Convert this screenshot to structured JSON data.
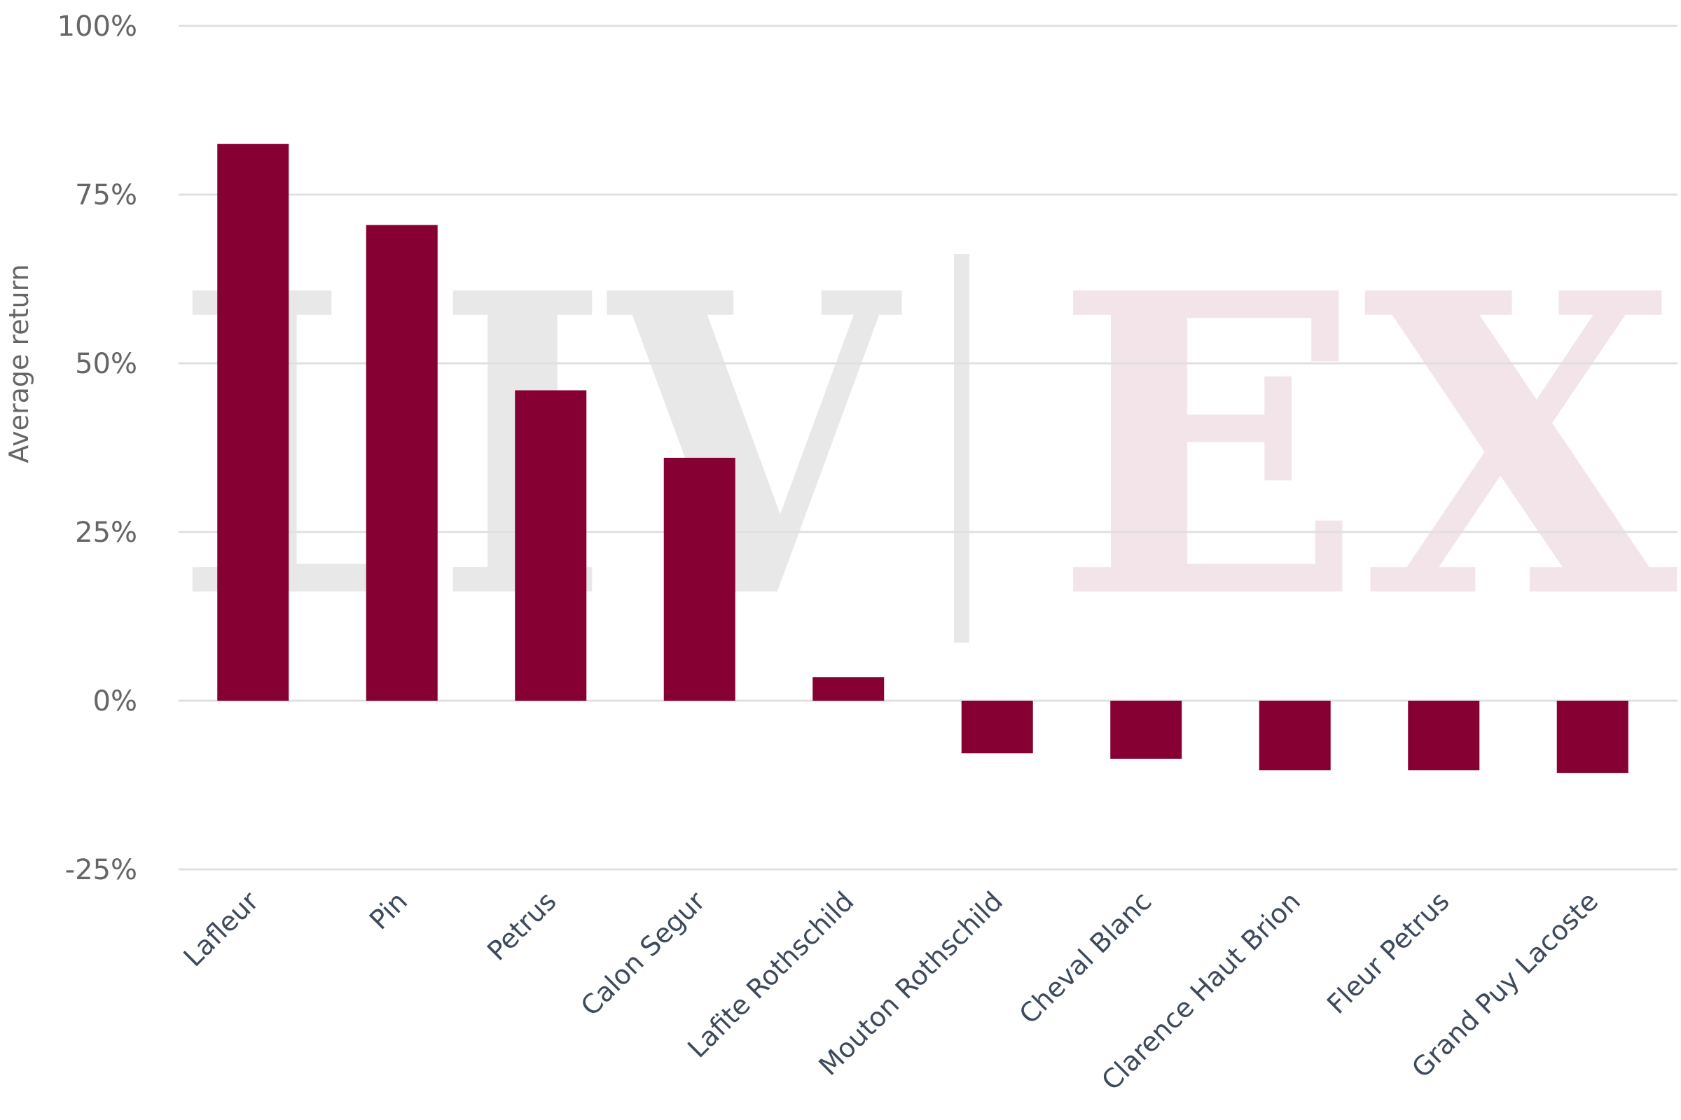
{
  "watermark": {
    "left_text": "LIV",
    "right_text": "EX"
  },
  "colors": {
    "bar": "#870033",
    "grid": "#e0e0e0",
    "watermark_left": "#e8e8e8",
    "watermark_right": "#f2e4e8"
  },
  "chart_data": {
    "type": "bar",
    "title": "",
    "xlabel": "",
    "ylabel": "Average return",
    "ylim": [
      -25,
      100
    ],
    "yticks": [
      -25,
      0,
      25,
      50,
      75,
      100
    ],
    "ytick_labels": [
      "-25%",
      "0%",
      "25%",
      "50%",
      "75%",
      "100%"
    ],
    "categories": [
      "Lafleur",
      "Pin",
      "Petrus",
      "Calon Segur",
      "Lafite Rothschild",
      "Mouton Rothschild",
      "Cheval Blanc",
      "Clarence Haut Brion",
      "Fleur Petrus",
      "Grand Puy Lacoste"
    ],
    "values": [
      82.5,
      70.5,
      46,
      36,
      3.5,
      -7.8,
      -8.6,
      -10.3,
      -10.3,
      -10.7
    ],
    "grid": true,
    "legend": "none"
  }
}
